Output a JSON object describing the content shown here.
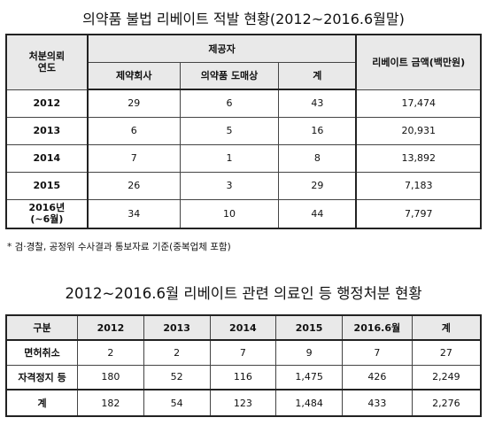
{
  "title1": "의약품 불법 리베이트 적발 현황(2012~2016.6월말)",
  "table1": {
    "col_year": "처분의뢰\n연도",
    "col_provider": "제공자",
    "sub_pharma": "제약회사",
    "sub_wholesale": "의약품 도매상",
    "sub_total": "계",
    "col_amount": "리베이트 금액(백만원)",
    "rows": [
      {
        "year": "2012",
        "pharma": "29",
        "wholesale": "6",
        "total": "43",
        "amount": "17,474"
      },
      {
        "year": "2013",
        "pharma": "6",
        "wholesale": "5",
        "total": "16",
        "amount": "20,931"
      },
      {
        "year": "2014",
        "pharma": "7",
        "wholesale": "1",
        "total": "8",
        "amount": "13,892"
      },
      {
        "year": "2015",
        "pharma": "26",
        "wholesale": "3",
        "total": "29",
        "amount": "7,183"
      },
      {
        "year": "2016년\n(~6월)",
        "pharma": "34",
        "wholesale": "10",
        "total": "44",
        "amount": "7,797"
      }
    ]
  },
  "note": "* 검·경찰, 공정위 수사결과 통보자료 기준(중복업체 포함)",
  "title2": "2012~2016.6월 리베이트 관련 의료인 등 행정처분 현황",
  "table2": {
    "headers": [
      "구분",
      "2012",
      "2013",
      "2014",
      "2015",
      "2016.6월",
      "계"
    ],
    "rows": [
      [
        "면허취소",
        "2",
        "2",
        "7",
        "9",
        "7",
        "27"
      ],
      [
        "자격정지 등",
        "180",
        "52",
        "116",
        "1,475",
        "426",
        "2,249"
      ]
    ],
    "total_row": [
      "계",
      "182",
      "54",
      "123",
      "1,484",
      "433",
      "2,276"
    ]
  }
}
